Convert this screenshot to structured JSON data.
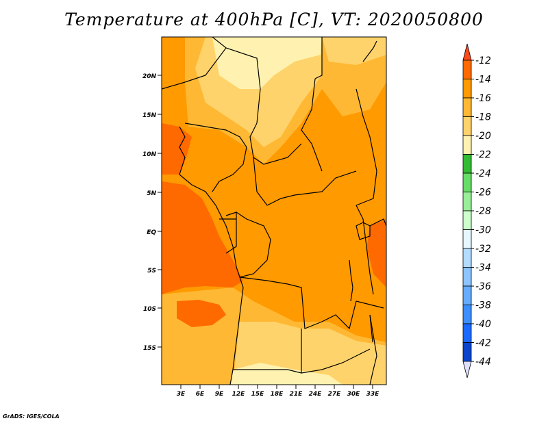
{
  "title": "Temperature at 400hPa [C], VT: 2020050800",
  "credit": "GrADS: IGES/COLA",
  "map": {
    "lat_labels": [
      "20N",
      "15N",
      "10N",
      "5N",
      "EQ",
      "5S",
      "10S",
      "15S"
    ],
    "lon_labels": [
      "3E",
      "6E",
      "9E",
      "12E",
      "15E",
      "18E",
      "21E",
      "24E",
      "27E",
      "30E",
      "33E"
    ]
  },
  "colorbar": {
    "labels": [
      "-12",
      "-14",
      "-16",
      "-18",
      "-20",
      "-22",
      "-24",
      "-26",
      "-28",
      "-30",
      "-32",
      "-34",
      "-36",
      "-38",
      "-40",
      "-42",
      "-44"
    ],
    "colors": {
      "above": "#ff4a1a",
      "bins": [
        "#ff6a00",
        "#ff9a00",
        "#ffb833",
        "#ffd36b",
        "#fff2b0",
        "#33bb33",
        "#66dd66",
        "#99ee99",
        "#ccffcc",
        "#e6f7ff",
        "#b3dcff",
        "#8cc5ff",
        "#66adff",
        "#3d8fff",
        "#1a6aff",
        "#0a45cc",
        "#081a66"
      ],
      "below": "#e0e0ff"
    }
  },
  "fill_colors": {
    "c12": "#ff6a00",
    "c14": "#ff9a00",
    "c16": "#ffb833",
    "c18": "#ffd36b",
    "c20": "#fff2b0"
  }
}
